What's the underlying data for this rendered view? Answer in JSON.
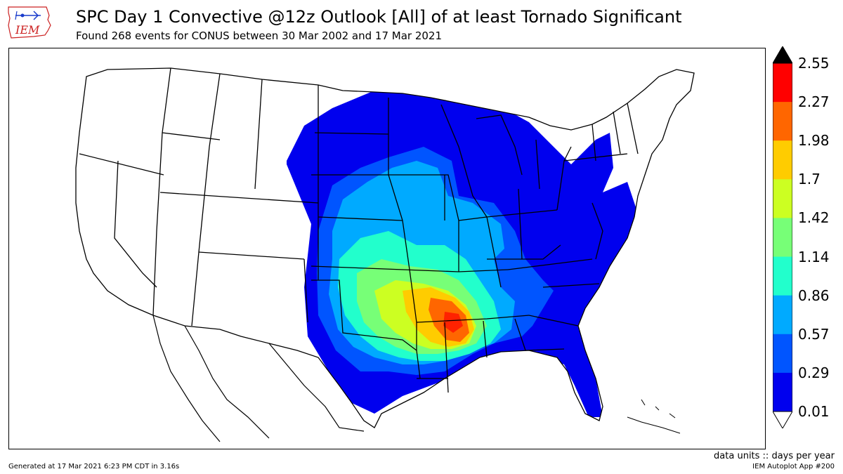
{
  "header": {
    "logo_text": "IEM",
    "title": "SPC Day 1 Convective @12z Outlook [All] of at least Tornado Significant",
    "subtitle": "Found 268 events for CONUS between 30 Mar 2002 and 17 Mar 2021"
  },
  "colorbar": {
    "labels": [
      "2.55",
      "2.27",
      "1.98",
      "1.7",
      "1.42",
      "1.14",
      "0.86",
      "0.57",
      "0.29",
      "0.01"
    ],
    "colors": [
      "#000000",
      "#ff0000",
      "#ff6600",
      "#ffcc00",
      "#ccff22",
      "#77ff77",
      "#22ffcc",
      "#00aaff",
      "#0055ff",
      "#0000ee",
      "#ffffff"
    ],
    "extend": "both"
  },
  "footer": {
    "units": "data units :: days per year",
    "generated": "Generated at 17 Mar 2021 6:23 PM CDT in 3.16s",
    "app": "IEM Autoplot App #200"
  }
}
